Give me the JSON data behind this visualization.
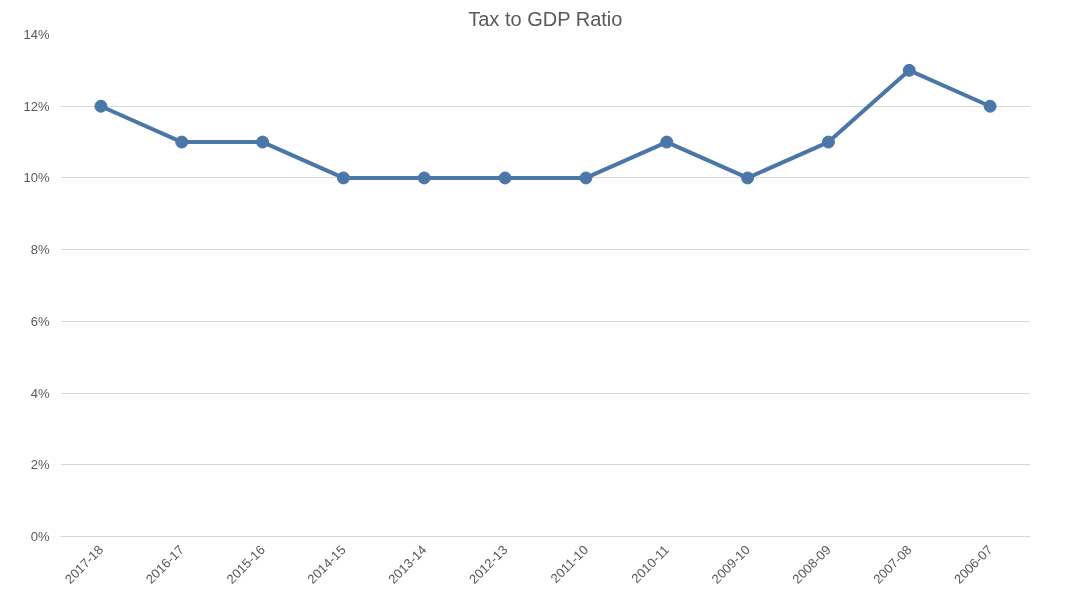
{
  "chart_data": {
    "type": "line",
    "title": "Tax to GDP Ratio",
    "categories": [
      "2017-18",
      "2016-17",
      "2015-16",
      "2014-15",
      "2013-14",
      "2012-13",
      "2011-10",
      "2010-11",
      "2009-10",
      "2008-09",
      "2007-08",
      "2006-07"
    ],
    "series": [
      {
        "color": "#4a76a8",
        "values": [
          12,
          11,
          11,
          10,
          10,
          10,
          10,
          11,
          10,
          11,
          13,
          12
        ]
      }
    ],
    "ylim": [
      0,
      14
    ],
    "yticks": [
      {
        "value": 0,
        "label": "0%"
      },
      {
        "value": 2,
        "label": "2%"
      },
      {
        "value": 4,
        "label": "4%"
      },
      {
        "value": 6,
        "label": "6%"
      },
      {
        "value": 8,
        "label": "8%"
      },
      {
        "value": 10,
        "label": "10%"
      },
      {
        "value": 12,
        "label": "12%"
      },
      {
        "value": 14,
        "label": "14%"
      }
    ],
    "grid": "y",
    "marker": "circle",
    "line_style": "solid"
  }
}
